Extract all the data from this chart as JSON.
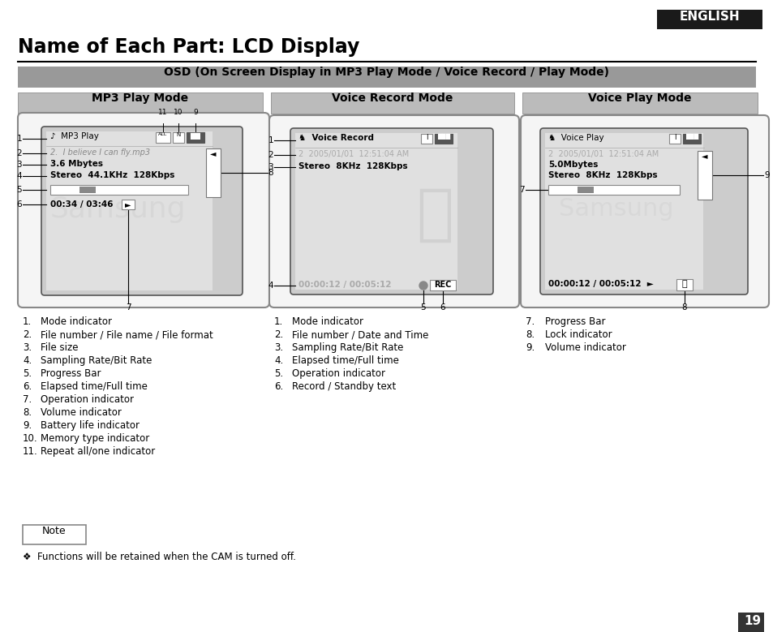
{
  "title": "Name of Each Part: LCD Display",
  "subtitle": "OSD (On Screen Display in MP3 Play Mode / Voice Record / Play Mode)",
  "english_label": "ENGLISH",
  "bg_color": "#ffffff",
  "col_headers": [
    "MP3 Play Mode",
    "Voice Record Mode",
    "Voice Play Mode"
  ],
  "note_text": "Note",
  "note_body": "❖  Functions will be retained when the CAM is turned off.",
  "page_num": "19",
  "left_list": [
    [
      "1.",
      "Mode indicator"
    ],
    [
      "2.",
      "File number / File name / File format"
    ],
    [
      "3.",
      "File size"
    ],
    [
      "4.",
      "Sampling Rate/Bit Rate"
    ],
    [
      "5.",
      "Progress Bar"
    ],
    [
      "6.",
      "Elapsed time/Full time"
    ],
    [
      "7.",
      "Operation indicator"
    ],
    [
      "8.",
      "Volume indicator"
    ],
    [
      "9.",
      "Battery life indicator"
    ],
    [
      "10.",
      "Memory type indicator"
    ],
    [
      "11.",
      "Repeat all/one indicator"
    ]
  ],
  "mid_list": [
    [
      "1.",
      "Mode indicator"
    ],
    [
      "2.",
      "File number / Date and Time"
    ],
    [
      "3.",
      "Sampling Rate/Bit Rate"
    ],
    [
      "4.",
      "Elapsed time/Full time"
    ],
    [
      "5.",
      "Operation indicator"
    ],
    [
      "6.",
      "Record / Standby text"
    ]
  ],
  "right_list": [
    [
      "7.",
      "Progress Bar"
    ],
    [
      "8.",
      "Lock indicator"
    ],
    [
      "9.",
      "Volume indicator"
    ]
  ]
}
